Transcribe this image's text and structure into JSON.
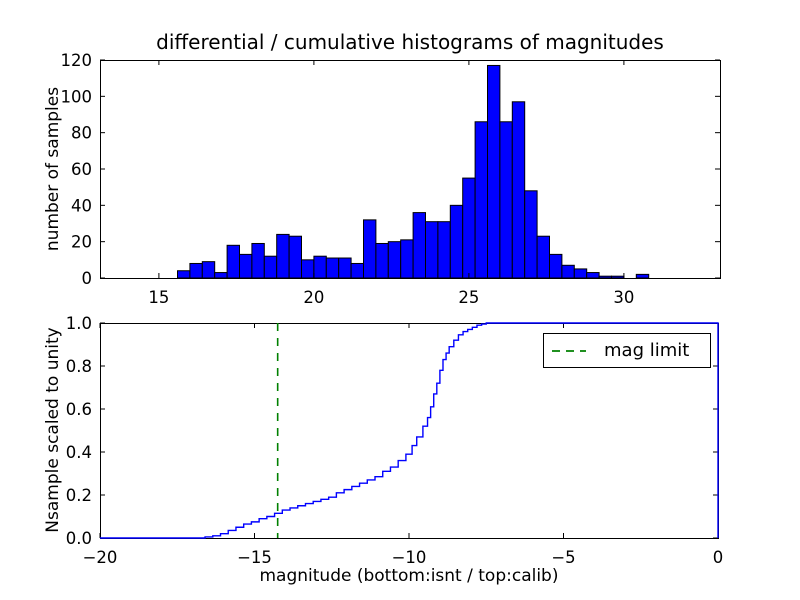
{
  "figure": {
    "background": "#ffffff"
  },
  "chart_data": [
    {
      "type": "bar",
      "subplot": "top",
      "title": "differential / cumulative histograms of magnitudes",
      "ylabel": "number of samples",
      "xlabel": "",
      "xlim": [
        13.1,
        33.1
      ],
      "ylim": [
        0,
        120
      ],
      "xticks": [
        15,
        20,
        25,
        30
      ],
      "xtick_labels": [
        "15",
        "20",
        "25",
        "30"
      ],
      "yticks": [
        0,
        20,
        40,
        60,
        80,
        100,
        120
      ],
      "ytick_labels": [
        "0",
        "20",
        "40",
        "60",
        "80",
        "100",
        "120"
      ],
      "bin_start": 15.6,
      "bin_width": 0.4,
      "counts": [
        4,
        8,
        9,
        3,
        18,
        13,
        19,
        12,
        24,
        23,
        10,
        12,
        11,
        11,
        8,
        32,
        19,
        20,
        21,
        36,
        31,
        31,
        40,
        55,
        86,
        117,
        86,
        97,
        48,
        23,
        13,
        7,
        5,
        3,
        1,
        1,
        0,
        2
      ],
      "bar_color": "#0000ff",
      "bar_edge_color": "#000000",
      "grid": false,
      "legend_position": "none"
    },
    {
      "type": "line",
      "subplot": "bottom",
      "title": "",
      "ylabel": "Nsample scaled to unity",
      "xlabel": "magnitude (bottom:isnt / top:calib)",
      "xlim": [
        -20,
        0
      ],
      "ylim": [
        0,
        1.0
      ],
      "xticks": [
        -20,
        -15,
        -10,
        -5,
        0
      ],
      "xtick_labels": [
        "−20",
        "−15",
        "−10",
        "−5",
        "0"
      ],
      "yticks": [
        0,
        0.2,
        0.4,
        0.6,
        0.8,
        1.0
      ],
      "ytick_labels": [
        "0.0",
        "0.2",
        "0.4",
        "0.6",
        "0.8",
        "1.0"
      ],
      "line_color": "#0000ff",
      "step_start": [
        -20,
        0
      ],
      "step_points": [
        [
          -16.6,
          0.005
        ],
        [
          -16.35,
          0.01
        ],
        [
          -16.1,
          0.02
        ],
        [
          -15.85,
          0.035
        ],
        [
          -15.6,
          0.05
        ],
        [
          -15.35,
          0.065
        ],
        [
          -15.1,
          0.075
        ],
        [
          -14.85,
          0.09
        ],
        [
          -14.6,
          0.1
        ],
        [
          -14.35,
          0.115
        ],
        [
          -14.1,
          0.13
        ],
        [
          -13.85,
          0.14
        ],
        [
          -13.6,
          0.15
        ],
        [
          -13.35,
          0.16
        ],
        [
          -13.1,
          0.17
        ],
        [
          -12.85,
          0.18
        ],
        [
          -12.6,
          0.19
        ],
        [
          -12.35,
          0.21
        ],
        [
          -12.1,
          0.225
        ],
        [
          -11.85,
          0.24
        ],
        [
          -11.6,
          0.255
        ],
        [
          -11.35,
          0.27
        ],
        [
          -11.1,
          0.285
        ],
        [
          -10.85,
          0.31
        ],
        [
          -10.6,
          0.33
        ],
        [
          -10.35,
          0.36
        ],
        [
          -10.1,
          0.39
        ],
        [
          -9.9,
          0.43
        ],
        [
          -9.75,
          0.47
        ],
        [
          -9.55,
          0.52
        ],
        [
          -9.4,
          0.56
        ],
        [
          -9.3,
          0.61
        ],
        [
          -9.2,
          0.67
        ],
        [
          -9.1,
          0.72
        ],
        [
          -9.0,
          0.78
        ],
        [
          -8.9,
          0.83
        ],
        [
          -8.8,
          0.86
        ],
        [
          -8.7,
          0.89
        ],
        [
          -8.55,
          0.92
        ],
        [
          -8.4,
          0.945
        ],
        [
          -8.25,
          0.96
        ],
        [
          -8.1,
          0.97
        ],
        [
          -7.95,
          0.98
        ],
        [
          -7.8,
          0.99
        ],
        [
          -7.65,
          0.995
        ],
        [
          -7.5,
          1.0
        ]
      ],
      "step_end": [
        0,
        0
      ],
      "vline": {
        "x": -14.25,
        "color": "#008000",
        "dash": [
          8,
          7
        ],
        "label": "mag limit"
      },
      "legend": {
        "label": "mag limit",
        "position": "upper right",
        "sample_color": "#008000"
      },
      "grid": false
    }
  ],
  "colors": {
    "bar_fill": "#0000ff",
    "curve": "#0000ff",
    "mag_limit_green": "#008000",
    "axes": "#000000",
    "background": "#ffffff"
  }
}
